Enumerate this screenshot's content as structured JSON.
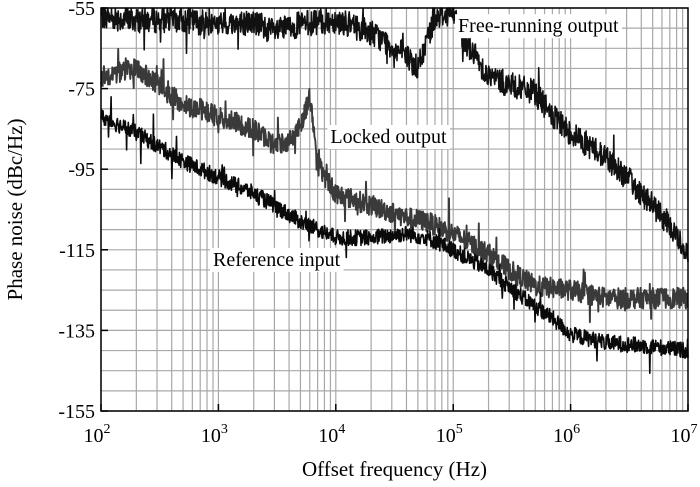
{
  "chart_data": {
    "type": "line",
    "xlabel": "Offset frequency (Hz)",
    "ylabel": "Phase noise (dBc/Hz)",
    "x_scale": "log",
    "xlim": [
      100,
      10000000
    ],
    "ylim": [
      -155,
      -55
    ],
    "grid": true,
    "x_ticks": [
      {
        "value": 100,
        "base": "10",
        "exp": "2"
      },
      {
        "value": 1000,
        "base": "10",
        "exp": "3"
      },
      {
        "value": 10000,
        "base": "10",
        "exp": "4"
      },
      {
        "value": 100000,
        "base": "10",
        "exp": "5"
      },
      {
        "value": 1000000,
        "base": "10",
        "exp": "6"
      },
      {
        "value": 10000000,
        "base": "10",
        "exp": "7"
      }
    ],
    "y_ticks": [
      {
        "value": -55,
        "label": "-55"
      },
      {
        "value": -75,
        "label": "-75"
      },
      {
        "value": -95,
        "label": "-95"
      },
      {
        "value": -115,
        "label": "-115"
      },
      {
        "value": -135,
        "label": "-135"
      },
      {
        "value": -155,
        "label": "-155"
      }
    ],
    "series": [
      {
        "name": "Free-running output",
        "color": "#111111",
        "points": [
          [
            100,
            -57
          ],
          [
            200,
            -58
          ],
          [
            500,
            -58
          ],
          [
            1000,
            -59
          ],
          [
            2000,
            -58.5
          ],
          [
            3000,
            -61
          ],
          [
            5000,
            -59
          ],
          [
            10000,
            -58
          ],
          [
            20000,
            -61
          ],
          [
            40000,
            -67
          ],
          [
            50000,
            -70
          ],
          [
            70000,
            -57
          ],
          [
            100000,
            -56
          ],
          [
            120000,
            -62
          ],
          [
            200000,
            -72
          ],
          [
            300000,
            -74
          ],
          [
            500000,
            -76
          ],
          [
            700000,
            -82
          ],
          [
            1000000,
            -86
          ],
          [
            2000000,
            -92
          ],
          [
            3000000,
            -97
          ],
          [
            5000000,
            -104
          ],
          [
            7000000,
            -109
          ],
          [
            10000000,
            -116
          ]
        ]
      },
      {
        "name": "Locked output",
        "color": "#3a3a3a",
        "points": [
          [
            100,
            -72
          ],
          [
            200,
            -70
          ],
          [
            300,
            -74
          ],
          [
            500,
            -79
          ],
          [
            700,
            -80
          ],
          [
            1000,
            -82
          ],
          [
            2000,
            -85
          ],
          [
            3000,
            -89
          ],
          [
            4000,
            -88
          ],
          [
            5000,
            -84
          ],
          [
            6000,
            -77
          ],
          [
            6500,
            -85
          ],
          [
            7000,
            -94
          ],
          [
            10000,
            -101
          ],
          [
            20000,
            -104
          ],
          [
            40000,
            -107
          ],
          [
            60000,
            -108
          ],
          [
            100000,
            -111
          ],
          [
            200000,
            -116
          ],
          [
            300000,
            -120
          ],
          [
            500000,
            -124
          ],
          [
            1000000,
            -125
          ],
          [
            2000000,
            -127
          ],
          [
            5000000,
            -127
          ],
          [
            10000000,
            -127
          ]
        ]
      },
      {
        "name": "Reference input",
        "color": "#0a0a0a",
        "points": [
          [
            100,
            -82
          ],
          [
            200,
            -86
          ],
          [
            500,
            -93
          ],
          [
            1000,
            -97
          ],
          [
            2000,
            -101
          ],
          [
            3000,
            -104
          ],
          [
            5000,
            -108
          ],
          [
            10000,
            -112
          ],
          [
            20000,
            -112
          ],
          [
            40000,
            -111
          ],
          [
            60000,
            -112
          ],
          [
            100000,
            -115
          ],
          [
            200000,
            -120
          ],
          [
            400000,
            -127
          ],
          [
            700000,
            -132
          ],
          [
            1000000,
            -136
          ],
          [
            2000000,
            -138
          ],
          [
            5000000,
            -139
          ],
          [
            10000000,
            -140
          ]
        ]
      }
    ],
    "annotations": [
      {
        "text": "Free-running output",
        "x": 110000,
        "y": -61
      },
      {
        "text": "Locked output",
        "x": 9000,
        "y": -88.5
      },
      {
        "text": "Reference input",
        "x": 900,
        "y": -119
      }
    ]
  }
}
